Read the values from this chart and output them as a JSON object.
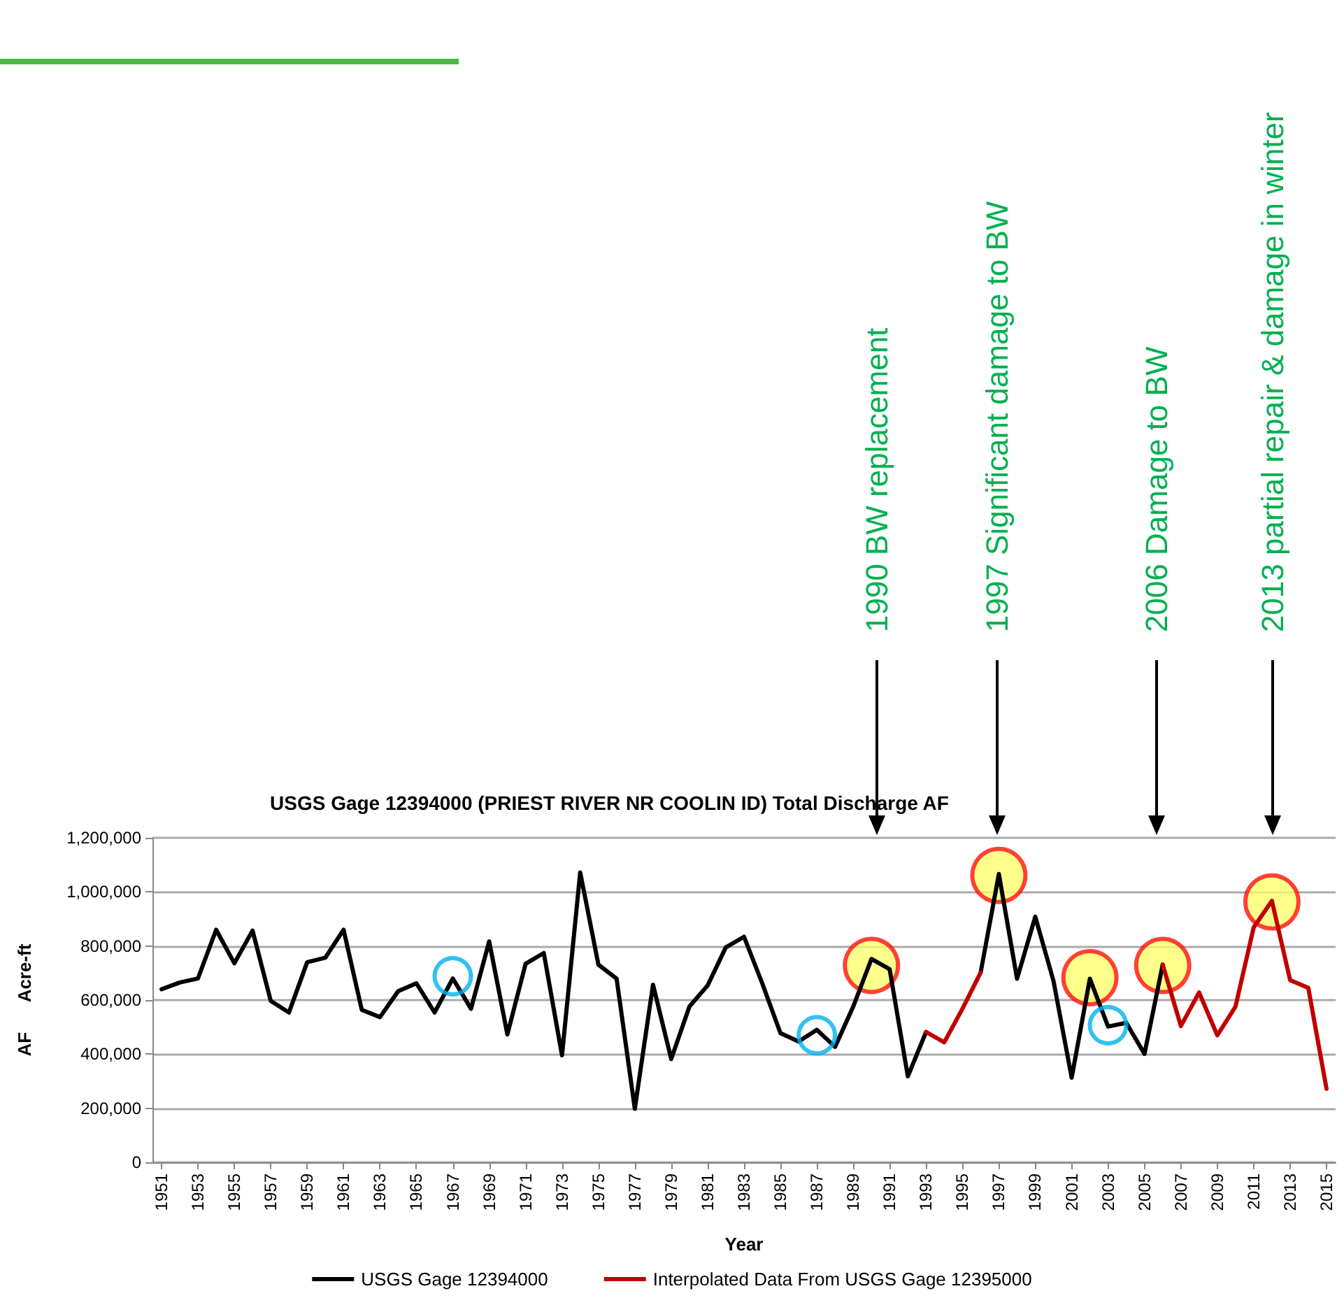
{
  "chart_data": {
    "type": "line",
    "title": "USGS Gage 12394000 (PRIEST RIVER NR COOLIN ID) Total Discharge AF",
    "xlabel": "Year",
    "ylabel": "AF      Acre-ft",
    "x": [
      1951,
      1952,
      1953,
      1954,
      1955,
      1956,
      1957,
      1958,
      1959,
      1960,
      1961,
      1962,
      1963,
      1964,
      1965,
      1966,
      1967,
      1968,
      1969,
      1970,
      1971,
      1972,
      1973,
      1974,
      1975,
      1976,
      1977,
      1978,
      1979,
      1980,
      1981,
      1982,
      1983,
      1984,
      1985,
      1986,
      1987,
      1988,
      1989,
      1990,
      1991,
      1992,
      1993,
      1994,
      1995,
      1996,
      1997,
      1998,
      1999,
      2000,
      2001,
      2002,
      2003,
      2004,
      2005,
      2006,
      2007,
      2008,
      2009,
      2010,
      2011,
      2012,
      2013,
      2014,
      2015
    ],
    "series": [
      {
        "name": "USGS Gage 12394000",
        "color": "#000000",
        "values": [
          640000,
          665000,
          680000,
          860000,
          736000,
          857000,
          597000,
          554000,
          740000,
          757000,
          860000,
          564000,
          537000,
          633000,
          662000,
          554000,
          680000,
          568000,
          817000,
          473000,
          734000,
          774000,
          396000,
          1072000,
          731000,
          679000,
          198000,
          657000,
          382000,
          576000,
          654000,
          795000,
          834000,
          662000,
          478000,
          447000,
          490000,
          427000,
          576000,
          752000,
          714000,
          318000,
          482000,
          null,
          null,
          702000,
          1066000,
          679000,
          908000,
          671000,
          313000,
          679000,
          502000,
          516000,
          401000,
          731000,
          null,
          null,
          null,
          null,
          null,
          null,
          null,
          null,
          null
        ]
      },
      {
        "name": "Interpolated Data From USGS Gage 12395000",
        "color": "#c00000",
        "values": [
          null,
          null,
          null,
          null,
          null,
          null,
          null,
          null,
          null,
          null,
          null,
          null,
          null,
          null,
          null,
          null,
          null,
          null,
          null,
          null,
          null,
          null,
          null,
          null,
          null,
          null,
          null,
          null,
          null,
          null,
          null,
          null,
          null,
          null,
          null,
          null,
          null,
          null,
          null,
          null,
          null,
          null,
          482000,
          444000,
          568000,
          702000,
          null,
          null,
          null,
          null,
          null,
          null,
          null,
          null,
          null,
          731000,
          504000,
          628000,
          470000,
          576000,
          869000,
          967000,
          674000,
          645000,
          272000
        ]
      },
      {
        "type": "scatter",
        "marker": "circle",
        "color": "#ffff66",
        "x": [
          1990,
          1997,
          2002,
          2006,
          2012
        ],
        "values": [
          728000,
          1061000,
          683000,
          728000,
          963000
        ]
      },
      {
        "type": "scatter",
        "marker": "circle",
        "color": "#00b0f0",
        "x": [
          1967,
          1987,
          2003
        ],
        "values": [
          688000,
          470000,
          507000
        ]
      }
    ],
    "xlim": [
      1950.5,
      2015.5
    ],
    "xticks": [
      1951,
      1953,
      1955,
      1957,
      1959,
      1961,
      1963,
      1965,
      1967,
      1969,
      1971,
      1973,
      1975,
      1977,
      1979,
      1981,
      1983,
      1985,
      1987,
      1989,
      1991,
      1993,
      1995,
      1997,
      1999,
      2001,
      2003,
      2005,
      2007,
      2009,
      2011,
      2013,
      2015
    ],
    "ylim": [
      0,
      1200000
    ],
    "yticks": [
      0,
      {
        "value": 200000,
        "label": "200,000"
      },
      {
        "value": 400000,
        "label": "400,000"
      },
      {
        "value": 600000,
        "label": "600,000"
      },
      {
        "value": 800000,
        "label": "800,000"
      },
      {
        "value": 1000000,
        "label": "1,000,000"
      },
      {
        "value": 1200000,
        "label": "1,200,000"
      }
    ],
    "grid": "y",
    "legend": "bottom",
    "marker": "none",
    "line_style": "solid",
    "annotations": [
      "1990 BW replacement",
      "1997 Significant damage to BW",
      "2006 Damage to BW",
      "2013 partial repair & damage in winter"
    ]
  }
}
